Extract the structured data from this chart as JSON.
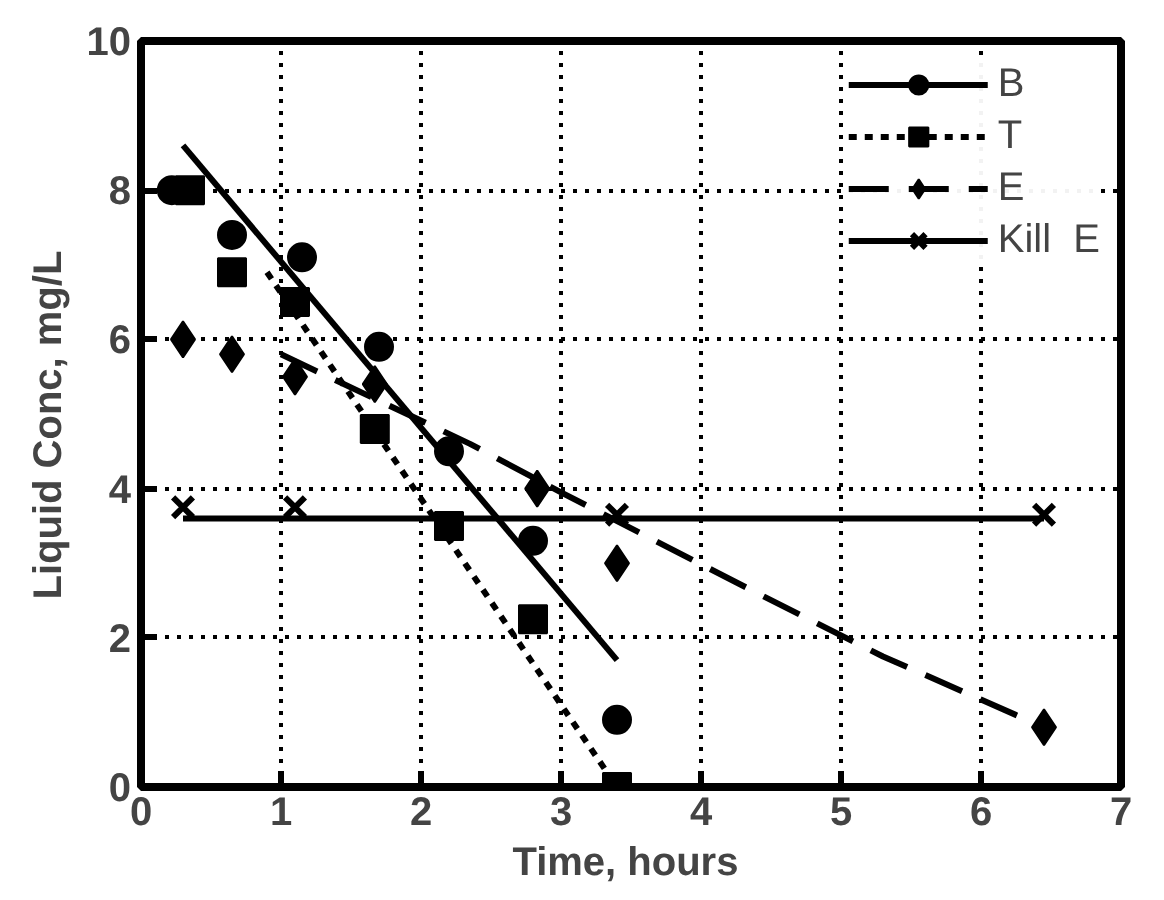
{
  "chart_data": {
    "type": "scatter",
    "xlabel": "Time,  hours",
    "ylabel": "Liquid  Conc,  mg/L",
    "xlim": [
      0,
      7
    ],
    "ylim": [
      0,
      10
    ],
    "xticks": [
      0,
      1,
      2,
      3,
      4,
      5,
      6,
      7
    ],
    "yticks": [
      0,
      2,
      4,
      6,
      8,
      10
    ],
    "grid": true,
    "legend": "top right",
    "series": [
      {
        "name": "B",
        "marker": "circle",
        "line_style": "solid",
        "color": "#000000",
        "x": [
          0.22,
          0.65,
          1.15,
          1.7,
          2.2,
          2.8,
          3.4
        ],
        "values": [
          8.0,
          7.4,
          7.1,
          5.9,
          4.5,
          3.3,
          0.9
        ]
      },
      {
        "type": "line",
        "line_style": "solid",
        "color": "#000000",
        "x": [
          0.3,
          3.4
        ],
        "values": [
          8.6,
          1.7
        ]
      },
      {
        "name": "T",
        "marker": "square",
        "line_style": "dotted",
        "color": "#000000",
        "x": [
          0.35,
          0.65,
          1.1,
          1.67,
          2.2,
          2.8,
          3.4
        ],
        "values": [
          8.0,
          6.9,
          6.5,
          4.8,
          3.5,
          2.25,
          0.0
        ]
      },
      {
        "type": "line",
        "line_style": "dotted",
        "color": "#000000",
        "x": [
          0.9,
          3.4
        ],
        "values": [
          6.9,
          0.0
        ]
      },
      {
        "name": "E",
        "marker": "diamond",
        "line_style": "dashed",
        "color": "#000000",
        "x": [
          0.3,
          0.65,
          1.1,
          1.67,
          2.83,
          3.4,
          6.45
        ],
        "values": [
          6.0,
          5.8,
          5.5,
          5.4,
          4.0,
          3.0,
          0.8
        ]
      },
      {
        "type": "line",
        "line_style": "dashed",
        "color": "#000000",
        "x": [
          1.0,
          2.35,
          3.0,
          4.4,
          5.3,
          6.45
        ],
        "values": [
          5.8,
          4.6,
          3.95,
          2.6,
          1.75,
          0.8
        ]
      },
      {
        "name": "Kill  E",
        "marker": "cross",
        "line_style": "solid",
        "color": "#000000",
        "x": [
          0.3,
          1.1,
          2.2,
          3.4,
          6.45
        ],
        "values": [
          3.75,
          3.75,
          null,
          3.65,
          3.65
        ]
      },
      {
        "type": "line",
        "line_style": "solid",
        "color": "#000000",
        "x": [
          0.3,
          6.45
        ],
        "values": [
          3.6,
          3.6
        ]
      }
    ]
  }
}
